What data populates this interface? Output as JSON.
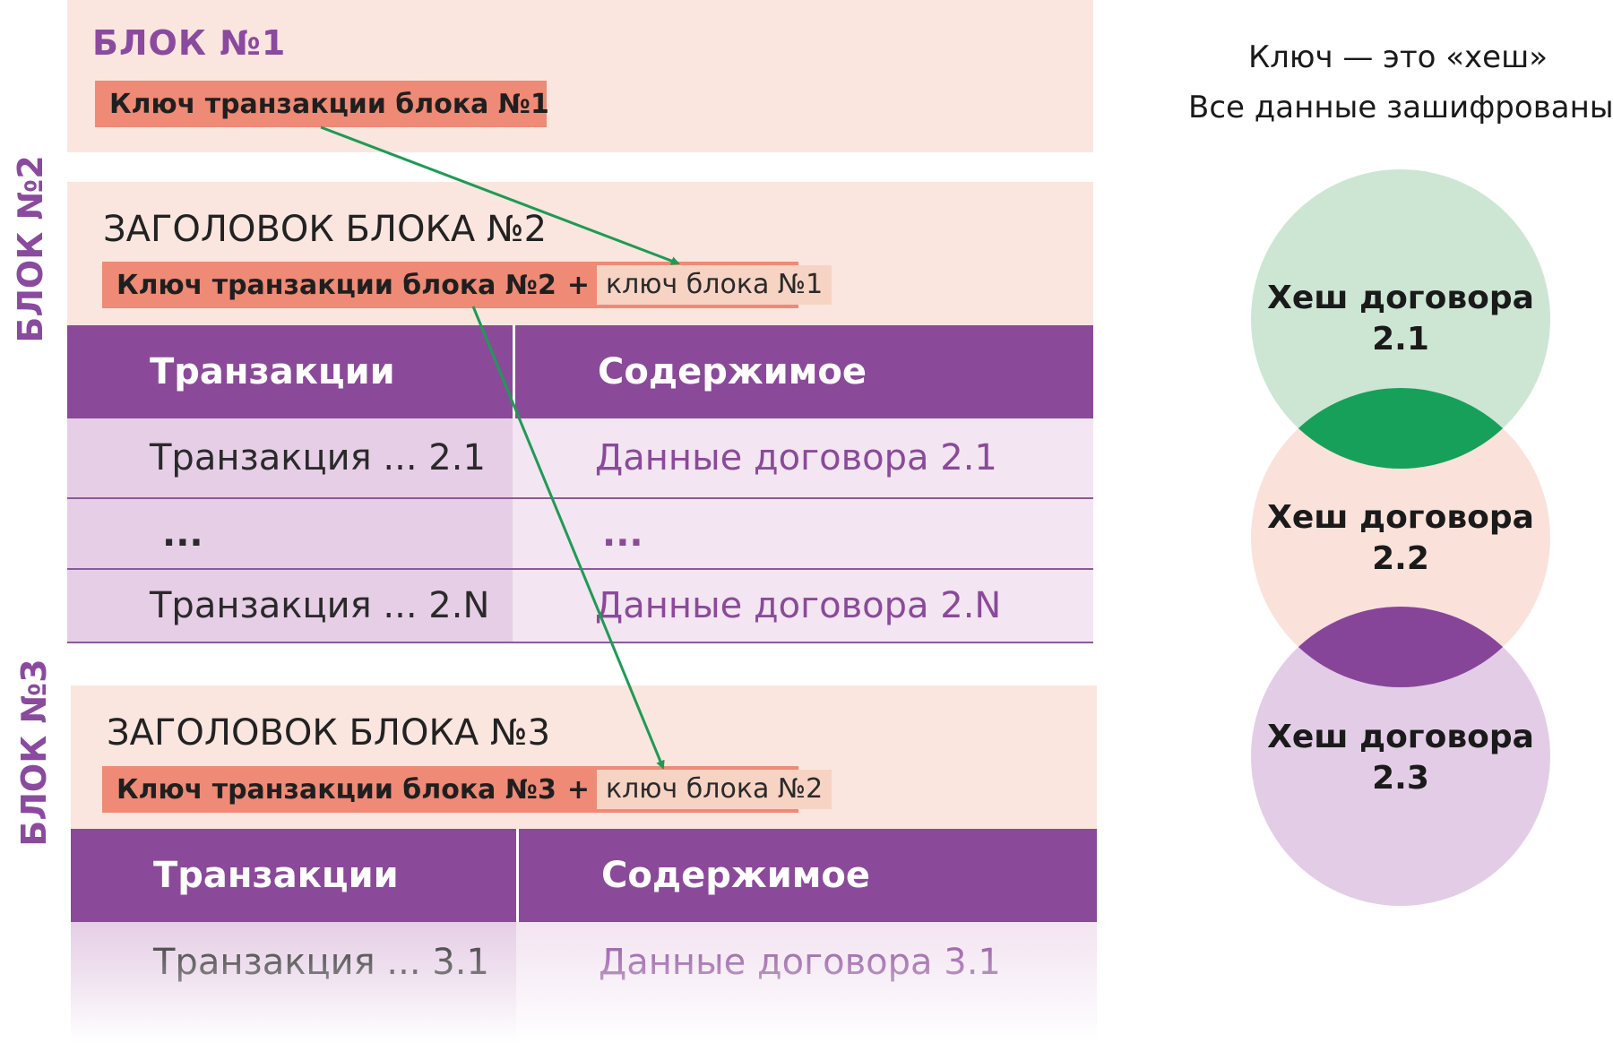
{
  "block1": {
    "title": "БЛОК №1",
    "key": "Ключ транзакции блока №1"
  },
  "block2": {
    "side_label": "БЛОК №2",
    "heading": "ЗАГОЛОВОК БЛОКА №2",
    "key": "Ключ транзакции блока №2",
    "plus": "+",
    "prev_key": "ключ блока №1",
    "columns": [
      "Транзакции",
      "Содержимое"
    ],
    "rows": [
      {
        "tx": "Транзакция ... 2.1",
        "content": "Данные договора 2.1"
      },
      {
        "tx": "...",
        "content": "..."
      },
      {
        "tx": "Транзакция ... 2.N",
        "content": "Данные договора 2.N"
      }
    ]
  },
  "block3": {
    "side_label": "БЛОК №3",
    "heading": "ЗАГОЛОВОК БЛОКА №3",
    "key": "Ключ транзакции блока №3",
    "plus": "+",
    "prev_key": "ключ блока №2",
    "columns": [
      "Транзакции",
      "Содержимое"
    ],
    "rows": [
      {
        "tx": "Транзакция ... 3.1",
        "content": "Данные договора 3.1"
      }
    ]
  },
  "legend": {
    "line1": "Ключ — это «хеш»",
    "line2": "Все данные зашифрованы"
  },
  "hashes": [
    {
      "line1": "Хеш договора",
      "line2": "2.1",
      "color": "#cde6d4"
    },
    {
      "line1": "Хеш договора",
      "line2": "2.2",
      "color": "#fae2da"
    },
    {
      "line1": "Хеш договора",
      "line2": "2.3",
      "color": "#e3cde6"
    }
  ],
  "colors": {
    "block_bg": "#fae6df",
    "key_bar": "#ee8a76",
    "purple": "#8a4a99",
    "arrow_green": "#1f9a55",
    "overlap_green": "#17a05a",
    "overlap_purple": "#87459a"
  }
}
